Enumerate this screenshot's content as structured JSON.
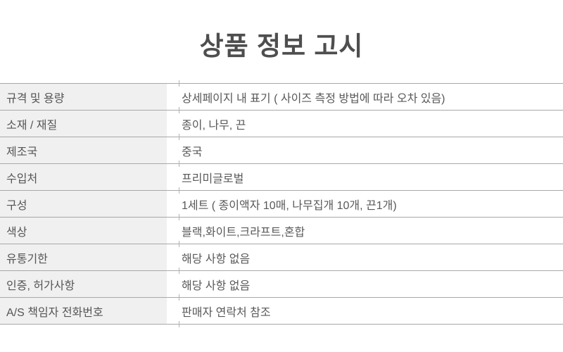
{
  "page": {
    "title": "상품 정보 고시"
  },
  "table": {
    "rows": [
      {
        "label": "규격 및 용량",
        "value": "상세페이지 내 표기 ( 사이즈 측정 방법에 따라 오차 있음)"
      },
      {
        "label": "소재 / 재질",
        "value": "종이, 나무, 끈"
      },
      {
        "label": "제조국",
        "value": "중국"
      },
      {
        "label": "수입처",
        "value": "프리미글로벌"
      },
      {
        "label": "구성",
        "value": "1세트 ( 종이액자 10매, 나무집개 10개, 끈1개)"
      },
      {
        "label": "색상",
        "value": "블랙,화이트,크라프트,혼합"
      },
      {
        "label": "유통기한",
        "value": "해당 사항 없음"
      },
      {
        "label": "인증, 허가사항",
        "value": "해당 사항 없음"
      },
      {
        "label": "A/S 책임자 전화번호",
        "value": "판매자 연락처 참조"
      }
    ]
  },
  "colors": {
    "title_text": "#4e4e4e",
    "cell_text": "#585858",
    "label_background": "#f0f0f0",
    "divider_line": "#a8a8a8",
    "background": "#ffffff"
  }
}
